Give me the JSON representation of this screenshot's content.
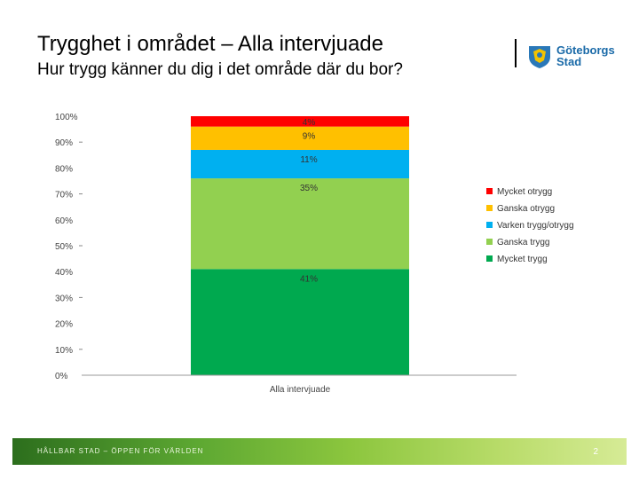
{
  "header": {
    "title": "Trygghet i området – Alla intervjuade",
    "subtitle": "Hur trygg känner du dig i det område där du bor?"
  },
  "logo": {
    "line1": "Göteborgs",
    "line2": "Stad",
    "icon": "goteborg-crest-icon"
  },
  "footer": {
    "text": "HÅLLBAR STAD – ÖPPEN FÖR VÄRLDEN",
    "page_number": "2"
  },
  "chart_data": {
    "type": "bar",
    "stacked": true,
    "categories": [
      "Alla intervjuade"
    ],
    "ylim": [
      0,
      100
    ],
    "yticks": [
      "0%",
      "10%",
      "20%",
      "30%",
      "40%",
      "50%",
      "60%",
      "70%",
      "80%",
      "90%",
      "100%"
    ],
    "series": [
      {
        "name": "Mycket trygg",
        "values": [
          41
        ],
        "label": "41%",
        "color": "#00a94f"
      },
      {
        "name": "Ganska trygg",
        "values": [
          35
        ],
        "label": "35%",
        "color": "#92d050"
      },
      {
        "name": "Varken trygg/otrygg",
        "values": [
          11
        ],
        "label": "11%",
        "color": "#00b0f0"
      },
      {
        "name": "Ganska otrygg",
        "values": [
          9
        ],
        "label": "9%",
        "color": "#ffc000"
      },
      {
        "name": "Mycket otrygg",
        "values": [
          4
        ],
        "label": "4%",
        "color": "#ff0000"
      }
    ],
    "legend_order": [
      "Mycket otrygg",
      "Ganska otrygg",
      "Varken trygg/otrygg",
      "Ganska trygg",
      "Mycket trygg"
    ],
    "legend_position": "right"
  }
}
